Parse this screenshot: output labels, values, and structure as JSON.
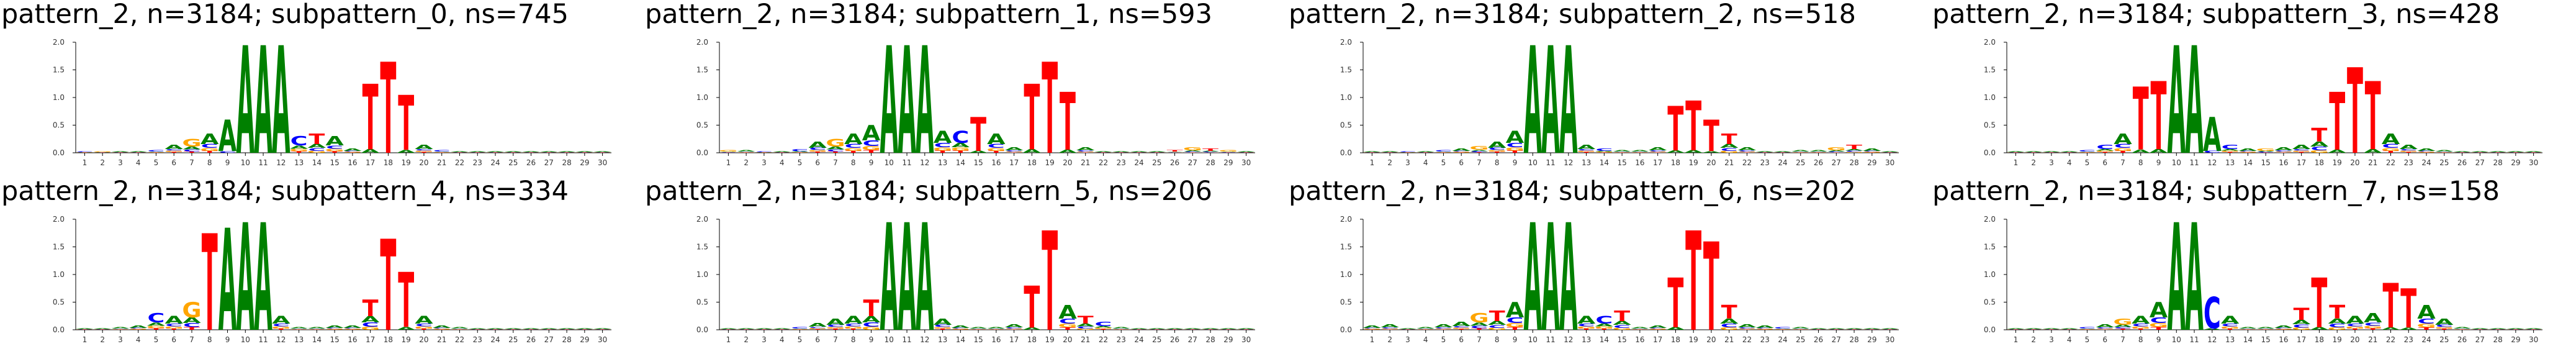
{
  "colors": {
    "A": "#008000",
    "C": "#0000ff",
    "G": "#ffa500",
    "T": "#ff0000",
    "axis": "#000000"
  },
  "chart_data": [
    {
      "type": "sequence-logo",
      "title": "pattern_2, n=3184; subpattern_0, ns=745",
      "ylim": [
        0,
        2.0
      ],
      "y_ticks": [
        "0.0",
        "0.5",
        "1.0",
        "1.5",
        "2.0"
      ],
      "x_ticks": [
        "1",
        "2",
        "3",
        "4",
        "5",
        "6",
        "7",
        "8",
        "9",
        "10",
        "11",
        "12",
        "13",
        "14",
        "15",
        "16",
        "17",
        "18",
        "19",
        "20",
        "21",
        "22",
        "23",
        "24",
        "25",
        "26",
        "27",
        "28",
        "29",
        "30"
      ],
      "info": [
        0.03,
        0.03,
        0.03,
        0.03,
        0.05,
        0.15,
        0.25,
        0.35,
        0.6,
        1.95,
        1.95,
        1.95,
        0.3,
        0.35,
        0.3,
        0.08,
        1.25,
        1.65,
        1.05,
        0.15,
        0.05,
        0.03,
        0.03,
        0.03,
        0.03,
        0.03,
        0.03,
        0.03,
        0.03,
        0.03
      ],
      "top": [
        "C",
        "G",
        "A",
        "A",
        "C",
        "A",
        "G",
        "A",
        "A",
        "A",
        "A",
        "A",
        "C",
        "T",
        "A",
        "A",
        "T",
        "T",
        "T",
        "A",
        "C",
        "A",
        "A",
        "A",
        "A",
        "A",
        "A",
        "A",
        "A",
        "A"
      ]
    },
    {
      "type": "sequence-logo",
      "title": "pattern_2, n=3184; subpattern_1, ns=593",
      "ylim": [
        0,
        2.0
      ],
      "y_ticks": [
        "0.0",
        "0.5",
        "1.0",
        "1.5",
        "2.0"
      ],
      "x_ticks": [
        "1",
        "2",
        "3",
        "4",
        "5",
        "6",
        "7",
        "8",
        "9",
        "10",
        "11",
        "12",
        "13",
        "14",
        "15",
        "16",
        "17",
        "18",
        "19",
        "20",
        "21",
        "22",
        "23",
        "24",
        "25",
        "26",
        "27",
        "28",
        "29",
        "30"
      ],
      "info": [
        0.05,
        0.05,
        0.03,
        0.03,
        0.06,
        0.2,
        0.25,
        0.35,
        0.5,
        1.95,
        1.95,
        1.95,
        0.4,
        0.4,
        0.65,
        0.35,
        0.1,
        1.25,
        1.65,
        1.1,
        0.1,
        0.03,
        0.03,
        0.03,
        0.03,
        0.05,
        0.1,
        0.08,
        0.05,
        0.03
      ],
      "top": [
        "G",
        "A",
        "C",
        "A",
        "C",
        "A",
        "G",
        "A",
        "A",
        "A",
        "A",
        "A",
        "A",
        "C",
        "T",
        "A",
        "A",
        "T",
        "T",
        "T",
        "A",
        "A",
        "A",
        "A",
        "A",
        "T",
        "G",
        "T",
        "G",
        "A"
      ]
    },
    {
      "type": "sequence-logo",
      "title": "pattern_2, n=3184; subpattern_2, ns=518",
      "ylim": [
        0,
        2.0
      ],
      "y_ticks": [
        "0.0",
        "0.5",
        "1.0",
        "1.5",
        "2.0"
      ],
      "x_ticks": [
        "1",
        "2",
        "3",
        "4",
        "5",
        "6",
        "7",
        "8",
        "9",
        "10",
        "11",
        "12",
        "13",
        "14",
        "15",
        "16",
        "17",
        "18",
        "19",
        "20",
        "21",
        "22",
        "23",
        "24",
        "25",
        "26",
        "27",
        "28",
        "29",
        "30"
      ],
      "info": [
        0.03,
        0.03,
        0.03,
        0.03,
        0.05,
        0.08,
        0.12,
        0.2,
        0.4,
        1.95,
        1.95,
        1.95,
        0.15,
        0.08,
        0.05,
        0.05,
        0.1,
        0.85,
        0.95,
        0.6,
        0.35,
        0.1,
        0.03,
        0.03,
        0.05,
        0.05,
        0.1,
        0.15,
        0.08,
        0.03
      ],
      "top": [
        "A",
        "A",
        "C",
        "A",
        "C",
        "A",
        "G",
        "A",
        "A",
        "A",
        "A",
        "A",
        "A",
        "C",
        "A",
        "A",
        "A",
        "T",
        "T",
        "T",
        "T",
        "A",
        "A",
        "A",
        "A",
        "A",
        "G",
        "T",
        "A",
        "A"
      ]
    },
    {
      "type": "sequence-logo",
      "title": "pattern_2, n=3184; subpattern_3, ns=428",
      "ylim": [
        0,
        2.0
      ],
      "y_ticks": [
        "0.0",
        "0.5",
        "1.0",
        "1.5",
        "2.0"
      ],
      "x_ticks": [
        "1",
        "2",
        "3",
        "4",
        "5",
        "6",
        "7",
        "8",
        "9",
        "10",
        "11",
        "12",
        "13",
        "14",
        "15",
        "16",
        "17",
        "18",
        "19",
        "20",
        "21",
        "22",
        "23",
        "24",
        "25",
        "26",
        "27",
        "28",
        "29",
        "30"
      ],
      "info": [
        0.03,
        0.03,
        0.03,
        0.03,
        0.05,
        0.15,
        0.35,
        1.2,
        1.3,
        1.95,
        1.95,
        0.65,
        0.15,
        0.08,
        0.08,
        0.1,
        0.15,
        0.45,
        1.1,
        1.55,
        1.3,
        0.35,
        0.15,
        0.08,
        0.05,
        0.03,
        0.03,
        0.03,
        0.03,
        0.03
      ],
      "top": [
        "A",
        "A",
        "A",
        "A",
        "C",
        "C",
        "A",
        "T",
        "T",
        "A",
        "A",
        "A",
        "C",
        "A",
        "G",
        "A",
        "A",
        "T",
        "T",
        "T",
        "T",
        "A",
        "A",
        "A",
        "A",
        "A",
        "A",
        "A",
        "A",
        "A"
      ]
    },
    {
      "type": "sequence-logo",
      "title": "pattern_2, n=3184; subpattern_4, ns=334",
      "ylim": [
        0,
        2.0
      ],
      "y_ticks": [
        "0.0",
        "0.5",
        "1.0",
        "1.5",
        "2.0"
      ],
      "x_ticks": [
        "1",
        "2",
        "3",
        "4",
        "5",
        "6",
        "7",
        "8",
        "9",
        "10",
        "11",
        "12",
        "13",
        "14",
        "15",
        "16",
        "17",
        "18",
        "19",
        "20",
        "21",
        "22",
        "23",
        "24",
        "25",
        "26",
        "27",
        "28",
        "29",
        "30"
      ],
      "info": [
        0.03,
        0.03,
        0.05,
        0.08,
        0.3,
        0.25,
        0.5,
        1.75,
        1.85,
        1.95,
        1.95,
        0.25,
        0.05,
        0.05,
        0.08,
        0.08,
        0.55,
        1.65,
        1.05,
        0.25,
        0.08,
        0.05,
        0.03,
        0.03,
        0.03,
        0.03,
        0.03,
        0.03,
        0.03,
        0.03
      ],
      "top": [
        "A",
        "A",
        "A",
        "A",
        "C",
        "A",
        "G",
        "T",
        "A",
        "A",
        "A",
        "A",
        "A",
        "A",
        "A",
        "A",
        "T",
        "T",
        "T",
        "A",
        "A",
        "A",
        "A",
        "A",
        "A",
        "A",
        "A",
        "A",
        "A",
        "A"
      ]
    },
    {
      "type": "sequence-logo",
      "title": "pattern_2, n=3184; subpattern_5, ns=206",
      "ylim": [
        0,
        2.0
      ],
      "y_ticks": [
        "0.0",
        "0.5",
        "1.0",
        "1.5",
        "2.0"
      ],
      "x_ticks": [
        "1",
        "2",
        "3",
        "4",
        "5",
        "6",
        "7",
        "8",
        "9",
        "10",
        "11",
        "12",
        "13",
        "14",
        "15",
        "16",
        "17",
        "18",
        "19",
        "20",
        "21",
        "22",
        "23",
        "24",
        "25",
        "26",
        "27",
        "28",
        "29",
        "30"
      ],
      "info": [
        0.03,
        0.03,
        0.03,
        0.03,
        0.05,
        0.12,
        0.2,
        0.25,
        0.55,
        1.95,
        1.95,
        1.95,
        0.2,
        0.08,
        0.05,
        0.05,
        0.1,
        0.8,
        1.8,
        0.45,
        0.25,
        0.15,
        0.05,
        0.03,
        0.03,
        0.03,
        0.03,
        0.03,
        0.03,
        0.03
      ],
      "top": [
        "A",
        "A",
        "A",
        "A",
        "C",
        "A",
        "A",
        "A",
        "T",
        "A",
        "A",
        "A",
        "A",
        "A",
        "A",
        "A",
        "A",
        "T",
        "T",
        "A",
        "T",
        "C",
        "A",
        "A",
        "A",
        "A",
        "A",
        "A",
        "A",
        "A"
      ]
    },
    {
      "type": "sequence-logo",
      "title": "pattern_2, n=3184; subpattern_6, ns=202",
      "ylim": [
        0,
        2.0
      ],
      "y_ticks": [
        "0.0",
        "0.5",
        "1.0",
        "1.5",
        "2.0"
      ],
      "x_ticks": [
        "1",
        "2",
        "3",
        "4",
        "5",
        "6",
        "7",
        "8",
        "9",
        "10",
        "11",
        "12",
        "13",
        "14",
        "15",
        "16",
        "17",
        "18",
        "19",
        "20",
        "21",
        "22",
        "23",
        "24",
        "25",
        "26",
        "27",
        "28",
        "29",
        "30"
      ],
      "info": [
        0.08,
        0.1,
        0.03,
        0.05,
        0.1,
        0.15,
        0.3,
        0.35,
        0.5,
        1.95,
        1.95,
        1.95,
        0.25,
        0.25,
        0.35,
        0.05,
        0.08,
        0.95,
        1.8,
        1.6,
        0.45,
        0.1,
        0.08,
        0.05,
        0.05,
        0.03,
        0.03,
        0.03,
        0.03,
        0.03
      ],
      "top": [
        "A",
        "A",
        "A",
        "A",
        "A",
        "A",
        "G",
        "T",
        "A",
        "A",
        "A",
        "A",
        "A",
        "C",
        "T",
        "A",
        "A",
        "T",
        "T",
        "T",
        "T",
        "A",
        "A",
        "C",
        "A",
        "A",
        "A",
        "A",
        "A",
        "A"
      ]
    },
    {
      "type": "sequence-logo",
      "title": "pattern_2, n=3184; subpattern_7, ns=158",
      "ylim": [
        0,
        2.0
      ],
      "y_ticks": [
        "0.0",
        "0.5",
        "1.0",
        "1.5",
        "2.0"
      ],
      "x_ticks": [
        "1",
        "2",
        "3",
        "4",
        "5",
        "6",
        "7",
        "8",
        "9",
        "10",
        "11",
        "12",
        "13",
        "14",
        "15",
        "16",
        "17",
        "18",
        "19",
        "20",
        "21",
        "22",
        "23",
        "24",
        "25",
        "26",
        "27",
        "28",
        "29",
        "30"
      ],
      "info": [
        0.03,
        0.03,
        0.03,
        0.03,
        0.05,
        0.1,
        0.2,
        0.25,
        0.5,
        1.95,
        1.95,
        0.6,
        0.25,
        0.05,
        0.05,
        0.08,
        0.4,
        0.95,
        0.45,
        0.25,
        0.3,
        0.85,
        0.75,
        0.45,
        0.2,
        0.05,
        0.03,
        0.03,
        0.03,
        0.03
      ],
      "top": [
        "A",
        "A",
        "A",
        "A",
        "C",
        "A",
        "G",
        "A",
        "A",
        "A",
        "A",
        "C",
        "A",
        "A",
        "A",
        "A",
        "T",
        "T",
        "T",
        "A",
        "A",
        "T",
        "T",
        "A",
        "A",
        "A",
        "A",
        "A",
        "A",
        "A"
      ]
    }
  ]
}
